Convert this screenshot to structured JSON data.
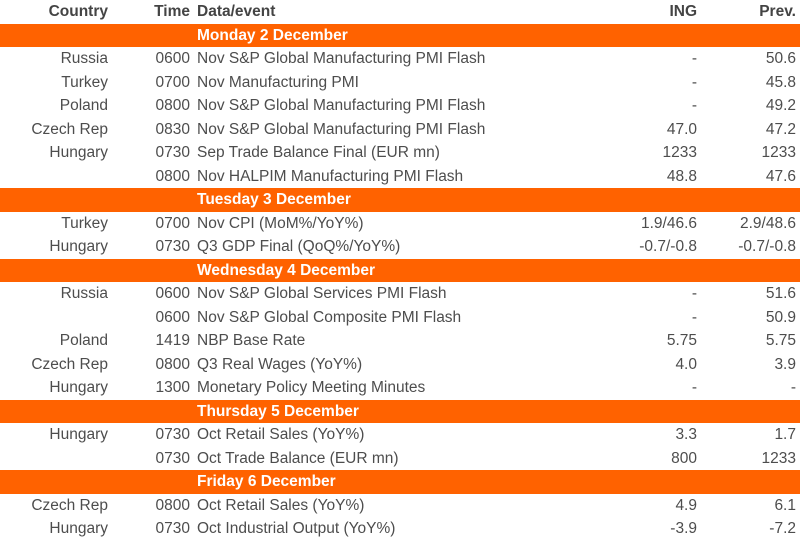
{
  "colors": {
    "accent_orange": "#FF6200",
    "banner_text": "#FFFFFF",
    "body_text": "#4D4D4D"
  },
  "header": {
    "country": "Country",
    "time": "Time",
    "event": "Data/event",
    "ing": "ING",
    "prev": "Prev."
  },
  "sections": [
    {
      "title": "Monday 2 December",
      "rows": [
        {
          "country": "Russia",
          "time": "0600",
          "event": "Nov S&P Global Manufacturing PMI Flash",
          "ing": "-",
          "prev": "50.6"
        },
        {
          "country": "Turkey",
          "time": "0700",
          "event": "Nov Manufacturing PMI",
          "ing": "-",
          "prev": "45.8"
        },
        {
          "country": "Poland",
          "time": "0800",
          "event": "Nov S&P Global Manufacturing PMI Flash",
          "ing": "-",
          "prev": "49.2"
        },
        {
          "country": "Czech Rep",
          "time": "0830",
          "event": "Nov S&P Global Manufacturing PMI Flash",
          "ing": "47.0",
          "prev": "47.2"
        },
        {
          "country": "Hungary",
          "time": "0730",
          "event": "Sep Trade Balance Final (EUR mn)",
          "ing": "1233",
          "prev": "1233"
        },
        {
          "country": "",
          "time": "0800",
          "event": "Nov HALPIM Manufacturing PMI Flash",
          "ing": "48.8",
          "prev": "47.6"
        }
      ]
    },
    {
      "title": "Tuesday 3 December",
      "rows": [
        {
          "country": "Turkey",
          "time": "0700",
          "event": "Nov CPI (MoM%/YoY%)",
          "ing": "1.9/46.6",
          "prev": "2.9/48.6"
        },
        {
          "country": "Hungary",
          "time": "0730",
          "event": "Q3 GDP Final (QoQ%/YoY%)",
          "ing": "-0.7/-0.8",
          "prev": "-0.7/-0.8"
        }
      ]
    },
    {
      "title": "Wednesday 4 December",
      "rows": [
        {
          "country": "Russia",
          "time": "0600",
          "event": "Nov S&P Global Services PMI Flash",
          "ing": "-",
          "prev": "51.6"
        },
        {
          "country": "",
          "time": "0600",
          "event": "Nov S&P Global Composite PMI Flash",
          "ing": "-",
          "prev": "50.9"
        },
        {
          "country": "Poland",
          "time": "1419",
          "event": "NBP Base Rate",
          "ing": "5.75",
          "prev": "5.75"
        },
        {
          "country": "Czech Rep",
          "time": "0800",
          "event": "Q3 Real Wages (YoY%)",
          "ing": "4.0",
          "prev": "3.9"
        },
        {
          "country": "Hungary",
          "time": "1300",
          "event": "Monetary Policy Meeting Minutes",
          "ing": "-",
          "prev": "-"
        }
      ]
    },
    {
      "title": "Thursday 5 December",
      "rows": [
        {
          "country": "Hungary",
          "time": "0730",
          "event": "Oct Retail Sales (YoY%)",
          "ing": "3.3",
          "prev": "1.7"
        },
        {
          "country": "",
          "time": "0730",
          "event": "Oct Trade Balance (EUR mn)",
          "ing": "800",
          "prev": "1233"
        }
      ]
    },
    {
      "title": "Friday 6 December",
      "rows": [
        {
          "country": "Czech Rep",
          "time": "0800",
          "event": "Oct Retail Sales (YoY%)",
          "ing": "4.9",
          "prev": "6.1"
        },
        {
          "country": "Hungary",
          "time": "0730",
          "event": "Oct Industrial Output (YoY%)",
          "ing": "-3.9",
          "prev": "-7.2"
        }
      ]
    }
  ]
}
